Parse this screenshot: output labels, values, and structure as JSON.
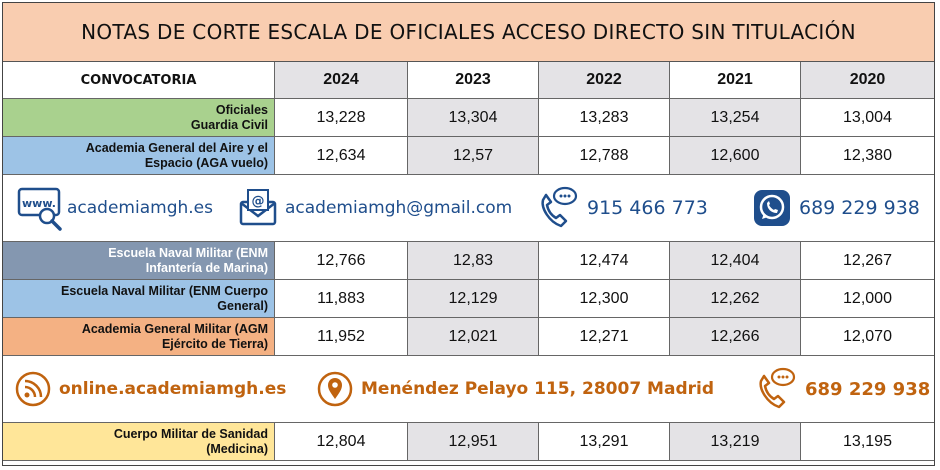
{
  "title": "NOTAS DE CORTE ESCALA DE OFICIALES ACCESO DIRECTO SIN TITULACIÓN",
  "header": {
    "label": "CONVOCATORIA",
    "years": [
      "2024",
      "2023",
      "2022",
      "2021",
      "2020"
    ]
  },
  "rows": [
    {
      "label_line1": "Oficiales",
      "label_line2": "Guardia Civil",
      "color": "#a9d18e",
      "values": [
        "13,228",
        "13,304",
        "13,283",
        "13,254",
        "13,004"
      ]
    },
    {
      "label_line1": "Academia General del Aire y el",
      "label_line2": "Espacio (AGA vuelo)",
      "color": "#9dc3e6",
      "values": [
        "12,634",
        "12,57",
        "12,788",
        "12,600",
        "12,380"
      ]
    },
    {
      "label_line1": "Escuela Naval Militar (ENM",
      "label_line2": "Infantería de Marina)",
      "color": "#8497b0",
      "values": [
        "12,766",
        "12,83",
        "12,474",
        "12,404",
        "12,267"
      ]
    },
    {
      "label_line1": "Escuela Naval Militar (ENM Cuerpo",
      "label_line2": "General)",
      "color": "#9dc3e6",
      "values": [
        "11,883",
        "12,129",
        "12,300",
        "12,262",
        "12,000"
      ]
    },
    {
      "label_line1": "Academia General Militar (AGM",
      "label_line2": "Ejército de Tierra)",
      "color": "#f4b183",
      "values": [
        "11,952",
        "12,021",
        "12,271",
        "12,266",
        "12,070"
      ]
    },
    {
      "label_line1": "Cuerpo Militar de Sanidad",
      "label_line2": "(Medicina)",
      "color": "#ffe699",
      "values": [
        "12,804",
        "12,951",
        "13,291",
        "13,219",
        "13,195"
      ]
    }
  ],
  "banner1": {
    "website": "academiamgh.es",
    "email": "academiamgh@gmail.com",
    "phone": "915 466 773",
    "whatsapp": "689 229 938",
    "text_color": "#1f4e8c"
  },
  "banner2": {
    "online": "online.academiamgh.es",
    "address": "Menéndez Pelayo 115, 28007 Madrid",
    "phone": "689 229 938",
    "text_color": "#c0630f"
  },
  "icons": {
    "website": "www-magnifier-icon",
    "email": "envelope-at-icon",
    "phone": "phone-chat-icon",
    "whatsapp": "whatsapp-icon",
    "online": "rss-feed-icon",
    "address": "location-pin-icon"
  },
  "colors": {
    "title_bg": "#f9cdb0",
    "alt_col_bg": "#e4e3e6"
  }
}
